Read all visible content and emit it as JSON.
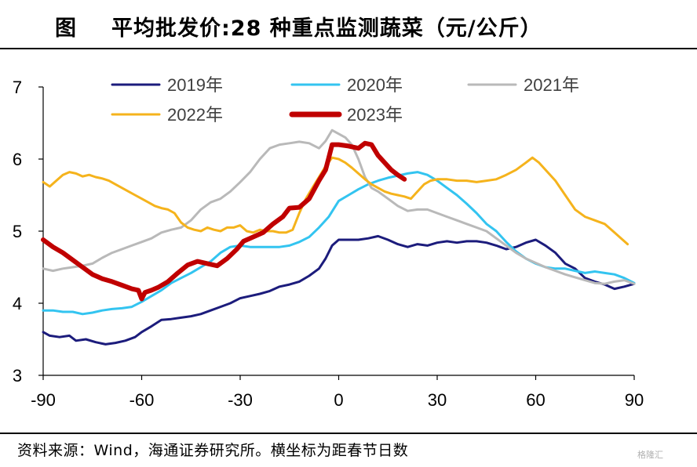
{
  "header": {
    "figure_label": "图",
    "title": "平均批发价:28 种重点监测蔬菜（元/公斤）"
  },
  "footer": {
    "source": "资料来源：Wind，海通证券研究所。横坐标为距春节日数",
    "watermark": "格隆汇"
  },
  "chart_data": {
    "type": "line",
    "xlim": [
      -90,
      90
    ],
    "ylim": [
      3,
      7
    ],
    "x_ticks": [
      -90,
      -60,
      -30,
      0,
      30,
      60,
      90
    ],
    "y_ticks": [
      3,
      4,
      5,
      6,
      7
    ],
    "x_tick_labels": [
      "-90",
      "-60",
      "-30",
      "0",
      "30",
      "60",
      "90"
    ],
    "y_tick_labels": [
      "3",
      "4",
      "5",
      "6",
      "7"
    ],
    "grid": false,
    "legend_position": "top",
    "series": [
      {
        "name": "2019年",
        "color": "#1c1c7c",
        "width": 3,
        "points": [
          [
            -90,
            3.6
          ],
          [
            -88,
            3.55
          ],
          [
            -85,
            3.53
          ],
          [
            -82,
            3.55
          ],
          [
            -80,
            3.48
          ],
          [
            -77,
            3.5
          ],
          [
            -74,
            3.46
          ],
          [
            -71,
            3.43
          ],
          [
            -68,
            3.45
          ],
          [
            -65,
            3.48
          ],
          [
            -62,
            3.53
          ],
          [
            -60,
            3.6
          ],
          [
            -57,
            3.68
          ],
          [
            -54,
            3.77
          ],
          [
            -51,
            3.78
          ],
          [
            -48,
            3.8
          ],
          [
            -45,
            3.82
          ],
          [
            -42,
            3.85
          ],
          [
            -39,
            3.9
          ],
          [
            -36,
            3.95
          ],
          [
            -33,
            4.0
          ],
          [
            -30,
            4.07
          ],
          [
            -27,
            4.1
          ],
          [
            -24,
            4.13
          ],
          [
            -21,
            4.17
          ],
          [
            -18,
            4.23
          ],
          [
            -15,
            4.26
          ],
          [
            -12,
            4.3
          ],
          [
            -9,
            4.38
          ],
          [
            -6,
            4.48
          ],
          [
            -4,
            4.62
          ],
          [
            -2,
            4.8
          ],
          [
            0,
            4.88
          ],
          [
            3,
            4.88
          ],
          [
            6,
            4.88
          ],
          [
            9,
            4.9
          ],
          [
            12,
            4.93
          ],
          [
            15,
            4.88
          ],
          [
            18,
            4.82
          ],
          [
            21,
            4.78
          ],
          [
            24,
            4.82
          ],
          [
            27,
            4.8
          ],
          [
            30,
            4.84
          ],
          [
            33,
            4.86
          ],
          [
            36,
            4.84
          ],
          [
            39,
            4.86
          ],
          [
            42,
            4.86
          ],
          [
            45,
            4.84
          ],
          [
            48,
            4.8
          ],
          [
            51,
            4.75
          ],
          [
            54,
            4.78
          ],
          [
            57,
            4.84
          ],
          [
            60,
            4.88
          ],
          [
            63,
            4.8
          ],
          [
            66,
            4.7
          ],
          [
            69,
            4.55
          ],
          [
            72,
            4.48
          ],
          [
            75,
            4.35
          ],
          [
            78,
            4.3
          ],
          [
            81,
            4.26
          ],
          [
            84,
            4.2
          ],
          [
            87,
            4.23
          ],
          [
            90,
            4.27
          ]
        ]
      },
      {
        "name": "2020年",
        "color": "#33c4f0",
        "width": 3,
        "points": [
          [
            -90,
            3.9
          ],
          [
            -87,
            3.9
          ],
          [
            -84,
            3.88
          ],
          [
            -81,
            3.88
          ],
          [
            -78,
            3.85
          ],
          [
            -75,
            3.87
          ],
          [
            -72,
            3.9
          ],
          [
            -69,
            3.92
          ],
          [
            -66,
            3.93
          ],
          [
            -63,
            3.95
          ],
          [
            -60,
            4.02
          ],
          [
            -57,
            4.1
          ],
          [
            -54,
            4.18
          ],
          [
            -51,
            4.28
          ],
          [
            -48,
            4.35
          ],
          [
            -45,
            4.42
          ],
          [
            -42,
            4.5
          ],
          [
            -39,
            4.58
          ],
          [
            -36,
            4.7
          ],
          [
            -33,
            4.78
          ],
          [
            -30,
            4.8
          ],
          [
            -27,
            4.78
          ],
          [
            -24,
            4.78
          ],
          [
            -21,
            4.78
          ],
          [
            -18,
            4.78
          ],
          [
            -15,
            4.8
          ],
          [
            -12,
            4.85
          ],
          [
            -9,
            4.92
          ],
          [
            -6,
            5.05
          ],
          [
            -3,
            5.2
          ],
          [
            0,
            5.42
          ],
          [
            3,
            5.5
          ],
          [
            6,
            5.58
          ],
          [
            9,
            5.65
          ],
          [
            12,
            5.7
          ],
          [
            15,
            5.74
          ],
          [
            18,
            5.77
          ],
          [
            21,
            5.8
          ],
          [
            24,
            5.82
          ],
          [
            27,
            5.78
          ],
          [
            30,
            5.7
          ],
          [
            33,
            5.6
          ],
          [
            36,
            5.5
          ],
          [
            39,
            5.38
          ],
          [
            42,
            5.25
          ],
          [
            45,
            5.1
          ],
          [
            48,
            5.0
          ],
          [
            51,
            4.85
          ],
          [
            54,
            4.72
          ],
          [
            57,
            4.62
          ],
          [
            60,
            4.55
          ],
          [
            63,
            4.5
          ],
          [
            66,
            4.48
          ],
          [
            69,
            4.48
          ],
          [
            72,
            4.45
          ],
          [
            75,
            4.42
          ],
          [
            78,
            4.44
          ],
          [
            81,
            4.42
          ],
          [
            84,
            4.4
          ],
          [
            87,
            4.35
          ],
          [
            90,
            4.28
          ]
        ]
      },
      {
        "name": "2021年",
        "color": "#b9b9b9",
        "width": 3,
        "points": [
          [
            -90,
            4.48
          ],
          [
            -87,
            4.45
          ],
          [
            -84,
            4.48
          ],
          [
            -81,
            4.5
          ],
          [
            -78,
            4.52
          ],
          [
            -75,
            4.55
          ],
          [
            -72,
            4.63
          ],
          [
            -69,
            4.7
          ],
          [
            -66,
            4.75
          ],
          [
            -63,
            4.8
          ],
          [
            -60,
            4.85
          ],
          [
            -57,
            4.9
          ],
          [
            -54,
            4.98
          ],
          [
            -51,
            5.02
          ],
          [
            -48,
            5.05
          ],
          [
            -45,
            5.15
          ],
          [
            -42,
            5.3
          ],
          [
            -39,
            5.4
          ],
          [
            -36,
            5.45
          ],
          [
            -33,
            5.55
          ],
          [
            -30,
            5.68
          ],
          [
            -27,
            5.82
          ],
          [
            -24,
            6.0
          ],
          [
            -21,
            6.15
          ],
          [
            -18,
            6.2
          ],
          [
            -15,
            6.22
          ],
          [
            -12,
            6.24
          ],
          [
            -9,
            6.22
          ],
          [
            -6,
            6.15
          ],
          [
            -4,
            6.25
          ],
          [
            -2,
            6.4
          ],
          [
            0,
            6.35
          ],
          [
            2,
            6.3
          ],
          [
            4,
            6.2
          ],
          [
            6,
            6.0
          ],
          [
            8,
            5.75
          ],
          [
            10,
            5.6
          ],
          [
            12,
            5.55
          ],
          [
            15,
            5.45
          ],
          [
            18,
            5.35
          ],
          [
            21,
            5.28
          ],
          [
            24,
            5.3
          ],
          [
            27,
            5.3
          ],
          [
            30,
            5.25
          ],
          [
            33,
            5.2
          ],
          [
            36,
            5.15
          ],
          [
            39,
            5.1
          ],
          [
            42,
            5.05
          ],
          [
            45,
            5.0
          ],
          [
            48,
            4.9
          ],
          [
            51,
            4.8
          ],
          [
            54,
            4.7
          ],
          [
            57,
            4.62
          ],
          [
            60,
            4.56
          ],
          [
            63,
            4.5
          ],
          [
            66,
            4.45
          ],
          [
            69,
            4.4
          ],
          [
            72,
            4.36
          ],
          [
            75,
            4.32
          ],
          [
            78,
            4.28
          ],
          [
            81,
            4.27
          ],
          [
            84,
            4.3
          ],
          [
            87,
            4.32
          ],
          [
            90,
            4.27
          ]
        ]
      },
      {
        "name": "2022年",
        "color": "#f5b31c",
        "width": 3,
        "points": [
          [
            -90,
            5.68
          ],
          [
            -88,
            5.62
          ],
          [
            -86,
            5.7
          ],
          [
            -84,
            5.78
          ],
          [
            -82,
            5.82
          ],
          [
            -80,
            5.8
          ],
          [
            -78,
            5.76
          ],
          [
            -76,
            5.78
          ],
          [
            -74,
            5.75
          ],
          [
            -72,
            5.73
          ],
          [
            -70,
            5.7
          ],
          [
            -68,
            5.65
          ],
          [
            -66,
            5.6
          ],
          [
            -64,
            5.55
          ],
          [
            -62,
            5.5
          ],
          [
            -60,
            5.45
          ],
          [
            -58,
            5.4
          ],
          [
            -56,
            5.35
          ],
          [
            -54,
            5.32
          ],
          [
            -52,
            5.3
          ],
          [
            -50,
            5.25
          ],
          [
            -48,
            5.12
          ],
          [
            -46,
            5.05
          ],
          [
            -44,
            5.02
          ],
          [
            -42,
            5.0
          ],
          [
            -40,
            5.05
          ],
          [
            -38,
            5.02
          ],
          [
            -36,
            5.0
          ],
          [
            -34,
            5.05
          ],
          [
            -32,
            5.05
          ],
          [
            -30,
            5.08
          ],
          [
            -28,
            5.0
          ],
          [
            -26,
            4.98
          ],
          [
            -24,
            5.02
          ],
          [
            -22,
            5.0
          ],
          [
            -20,
            5.0
          ],
          [
            -18,
            4.98
          ],
          [
            -16,
            4.98
          ],
          [
            -14,
            5.02
          ],
          [
            -12,
            5.25
          ],
          [
            -10,
            5.45
          ],
          [
            -8,
            5.6
          ],
          [
            -6,
            5.75
          ],
          [
            -4,
            5.9
          ],
          [
            -2,
            6.02
          ],
          [
            0,
            6.0
          ],
          [
            2,
            5.95
          ],
          [
            4,
            5.88
          ],
          [
            6,
            5.8
          ],
          [
            8,
            5.72
          ],
          [
            10,
            5.65
          ],
          [
            12,
            5.6
          ],
          [
            14,
            5.55
          ],
          [
            16,
            5.52
          ],
          [
            18,
            5.5
          ],
          [
            20,
            5.48
          ],
          [
            22,
            5.45
          ],
          [
            24,
            5.55
          ],
          [
            26,
            5.65
          ],
          [
            28,
            5.7
          ],
          [
            30,
            5.72
          ],
          [
            33,
            5.72
          ],
          [
            36,
            5.7
          ],
          [
            39,
            5.7
          ],
          [
            42,
            5.68
          ],
          [
            45,
            5.7
          ],
          [
            48,
            5.72
          ],
          [
            51,
            5.78
          ],
          [
            54,
            5.85
          ],
          [
            57,
            5.95
          ],
          [
            59,
            6.02
          ],
          [
            61,
            5.95
          ],
          [
            63,
            5.85
          ],
          [
            66,
            5.7
          ],
          [
            69,
            5.5
          ],
          [
            72,
            5.3
          ],
          [
            75,
            5.2
          ],
          [
            78,
            5.15
          ],
          [
            81,
            5.1
          ],
          [
            84,
            4.98
          ],
          [
            86,
            4.9
          ],
          [
            88,
            4.82
          ]
        ]
      },
      {
        "name": "2023年",
        "color": "#c00000",
        "width": 6,
        "points": [
          [
            -90,
            4.88
          ],
          [
            -87,
            4.78
          ],
          [
            -84,
            4.7
          ],
          [
            -81,
            4.6
          ],
          [
            -78,
            4.5
          ],
          [
            -75,
            4.4
          ],
          [
            -72,
            4.34
          ],
          [
            -69,
            4.3
          ],
          [
            -66,
            4.25
          ],
          [
            -63,
            4.2
          ],
          [
            -61,
            4.18
          ],
          [
            -60,
            4.06
          ],
          [
            -59,
            4.15
          ],
          [
            -57,
            4.18
          ],
          [
            -55,
            4.22
          ],
          [
            -52,
            4.3
          ],
          [
            -49,
            4.42
          ],
          [
            -46,
            4.53
          ],
          [
            -43,
            4.58
          ],
          [
            -40,
            4.55
          ],
          [
            -37,
            4.52
          ],
          [
            -34,
            4.62
          ],
          [
            -31,
            4.75
          ],
          [
            -29,
            4.86
          ],
          [
            -26,
            4.92
          ],
          [
            -23,
            4.98
          ],
          [
            -20,
            5.1
          ],
          [
            -17,
            5.2
          ],
          [
            -15,
            5.32
          ],
          [
            -12,
            5.33
          ],
          [
            -9,
            5.45
          ],
          [
            -6,
            5.7
          ],
          [
            -4,
            5.85
          ],
          [
            -3,
            6.02
          ],
          [
            -2,
            6.2
          ],
          [
            0,
            6.2
          ],
          [
            3,
            6.18
          ],
          [
            6,
            6.15
          ],
          [
            8,
            6.22
          ],
          [
            10,
            6.2
          ],
          [
            12,
            6.05
          ],
          [
            14,
            5.95
          ],
          [
            16,
            5.85
          ],
          [
            18,
            5.78
          ],
          [
            20,
            5.72
          ]
        ]
      }
    ]
  }
}
